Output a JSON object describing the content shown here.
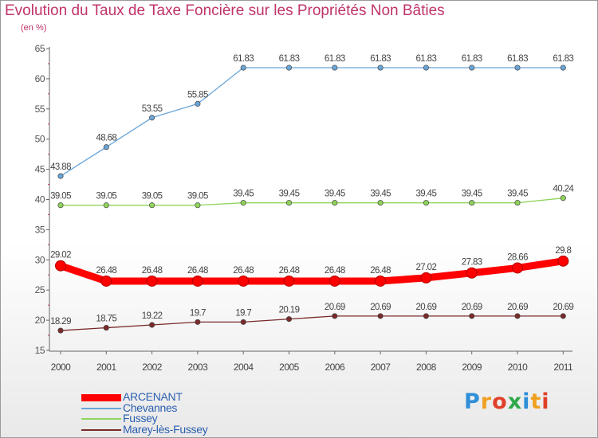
{
  "header": {
    "title": "Evolution du Taux de Taxe Foncière sur les Propriétés Non Bâties",
    "unit": "(en %)"
  },
  "logo": {
    "letters": [
      "P",
      "r",
      "o",
      "x",
      "i",
      "t",
      "i"
    ],
    "colors": [
      "#2f8fd8",
      "#f0a020",
      "#e0402a",
      "#2fa84a",
      "#2f8fd8",
      "#f0a020",
      "#e0402a"
    ]
  },
  "colors": {
    "title": "#c0326a",
    "axis": "#666666"
  },
  "chart_data": {
    "type": "line",
    "title": "Evolution du Taux de Taxe Foncière sur les Propriétés Non Bâties",
    "ylabel": "(en %)",
    "xlabel": "",
    "ylim": [
      15,
      65
    ],
    "yticks": [
      15,
      20,
      25,
      30,
      35,
      40,
      45,
      50,
      55,
      60,
      65
    ],
    "categories": [
      "2000",
      "2001",
      "2002",
      "2003",
      "2004",
      "2005",
      "2006",
      "2007",
      "2008",
      "2009",
      "2010",
      "2011"
    ],
    "grid": false,
    "legend_position": "bottom-left",
    "series": [
      {
        "name": "ARCENANT",
        "color": "#ff0000",
        "width": "thick",
        "values": [
          29.02,
          26.48,
          26.48,
          26.48,
          26.48,
          26.48,
          26.48,
          26.48,
          27.02,
          27.83,
          28.66,
          29.8
        ],
        "labels": [
          "29.02",
          "26.48",
          "26.48",
          "26.48",
          "26.48",
          "26.48",
          "26.48",
          "26.48",
          "27.02",
          "27.83",
          "28.66",
          "29.8"
        ]
      },
      {
        "name": "Chevannes",
        "color": "#6aa5d8",
        "width": "thin",
        "values": [
          43.88,
          48.68,
          53.55,
          55.85,
          61.83,
          61.83,
          61.83,
          61.83,
          61.83,
          61.83,
          61.83,
          61.83
        ],
        "labels": [
          "43.88",
          "48.68",
          "53.55",
          "55.85",
          "61.83",
          "61.83",
          "61.83",
          "61.83",
          "61.83",
          "61.83",
          "61.83",
          "61.83"
        ]
      },
      {
        "name": "Fussey",
        "color": "#8fd45a",
        "width": "thin",
        "values": [
          39.05,
          39.05,
          39.05,
          39.05,
          39.45,
          39.45,
          39.45,
          39.45,
          39.45,
          39.45,
          39.45,
          40.24
        ],
        "labels": [
          "39.05",
          "39.05",
          "39.05",
          "39.05",
          "39.45",
          "39.45",
          "39.45",
          "39.45",
          "39.45",
          "39.45",
          "39.45",
          "40.24"
        ]
      },
      {
        "name": "Marey-lès-Fussey",
        "color": "#7a2a2a",
        "width": "thin",
        "values": [
          18.29,
          18.75,
          19.22,
          19.7,
          19.7,
          20.19,
          20.69,
          20.69,
          20.69,
          20.69,
          20.69,
          20.69
        ],
        "labels": [
          "18.29",
          "18.75",
          "19.22",
          "19.7",
          "19.7",
          "20.19",
          "20.69",
          "20.69",
          "20.69",
          "20.69",
          "20.69",
          "20.69"
        ]
      }
    ]
  }
}
